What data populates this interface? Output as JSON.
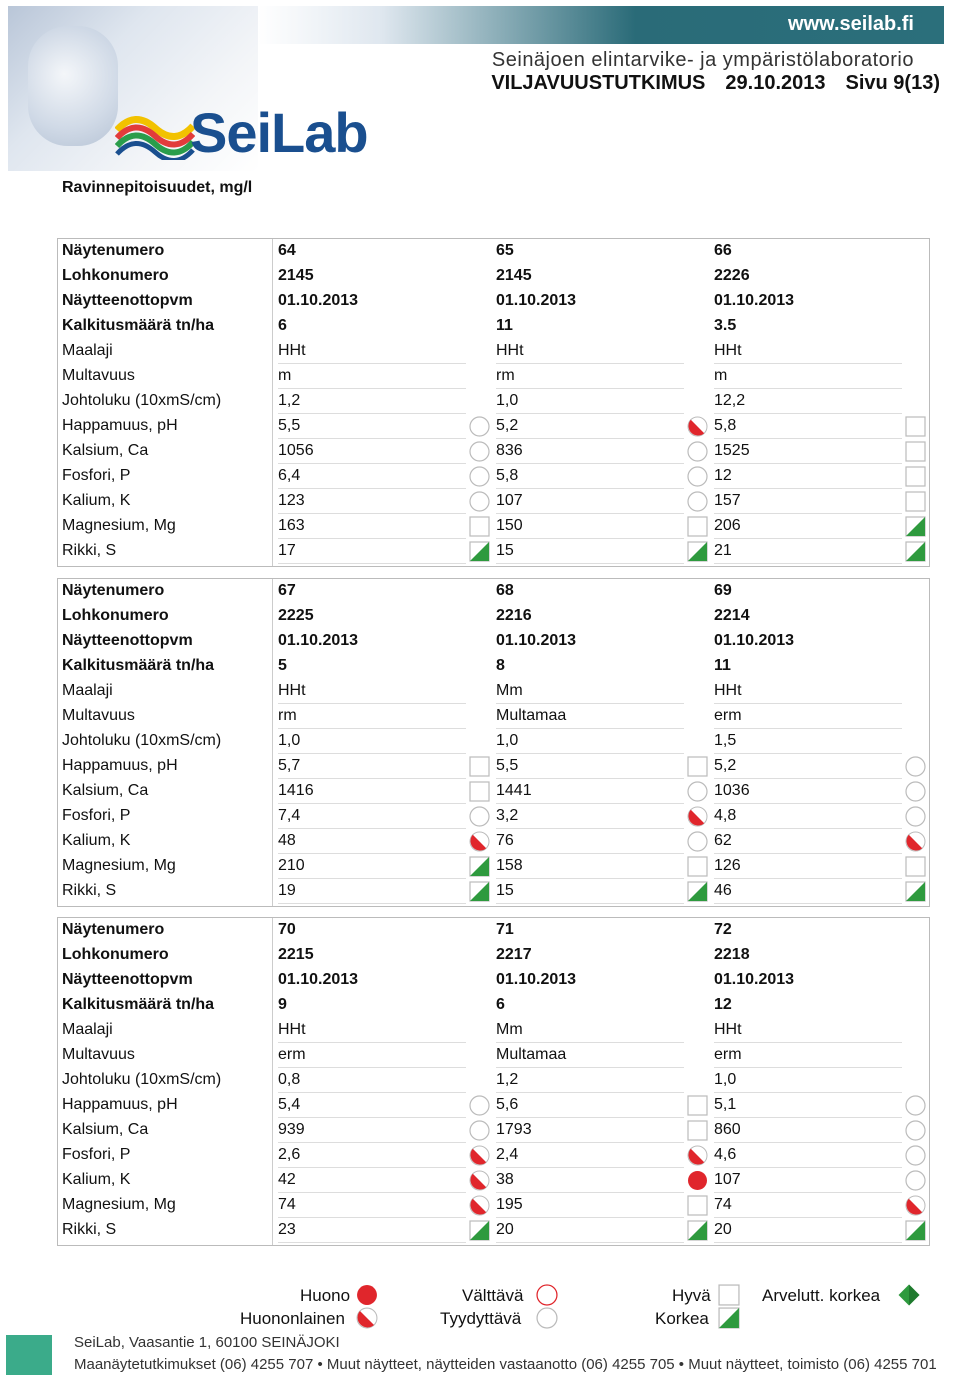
{
  "header": {
    "url": "www.seilab.fi",
    "subtitle": "Seinäjoen elintarvike- ja ympäristölaboratorio",
    "doc_title": "VILJAVUUSTUTKIMUS",
    "doc_date": "29.10.2013",
    "doc_page": "Sivu 9(13)",
    "logo_text": "SeiLab"
  },
  "section_title": "Ravinnepitoisuudet, mg/l",
  "row_labels": [
    "Näytenumero",
    "Lohkonumero",
    "Näytteenottopvm",
    "Kalkitusmäärä tn/ha",
    "Maalaji",
    "Multavuus",
    "Johtoluku (10xmS/cm)",
    "Happamuus, pH",
    "Kalsium, Ca",
    "Fosfori, P",
    "Kalium, K",
    "Magnesium, Mg",
    "Rikki, S"
  ],
  "blocks": [
    {
      "samples": [
        {
          "values": [
            "64",
            "2145",
            "01.10.2013",
            "6",
            "HHt",
            "m",
            "1,2",
            "5,5",
            "1056",
            "6,4",
            "123",
            "163",
            "17"
          ],
          "icons": [
            "",
            "",
            "",
            "",
            "",
            "",
            "",
            "tyydyttava",
            "tyydyttava",
            "tyydyttava",
            "tyydyttava",
            "hyva",
            "korkea"
          ]
        },
        {
          "values": [
            "65",
            "2145",
            "01.10.2013",
            "11",
            "HHt",
            "rm",
            "1,0",
            "5,2",
            "836",
            "5,8",
            "107",
            "150",
            "15"
          ],
          "icons": [
            "",
            "",
            "",
            "",
            "",
            "",
            "",
            "huononlainen",
            "tyydyttava",
            "tyydyttava",
            "tyydyttava",
            "hyva",
            "korkea"
          ]
        },
        {
          "values": [
            "66",
            "2226",
            "01.10.2013",
            "3.5",
            "HHt",
            "m",
            "12,2",
            "5,8",
            "1525",
            "12",
            "157",
            "206",
            "21"
          ],
          "icons": [
            "",
            "",
            "",
            "",
            "",
            "",
            "",
            "hyva",
            "hyva",
            "hyva",
            "hyva",
            "korkea",
            "korkea"
          ]
        }
      ]
    },
    {
      "samples": [
        {
          "values": [
            "67",
            "2225",
            "01.10.2013",
            "5",
            "HHt",
            "rm",
            "1,0",
            "5,7",
            "1416",
            "7,4",
            "48",
            "210",
            "19"
          ],
          "icons": [
            "",
            "",
            "",
            "",
            "",
            "",
            "",
            "hyva",
            "hyva",
            "tyydyttava",
            "huononlainen",
            "korkea",
            "korkea"
          ]
        },
        {
          "values": [
            "68",
            "2216",
            "01.10.2013",
            "8",
            "Mm",
            "Multamaa",
            "1,0",
            "5,5",
            "1441",
            "3,2",
            "76",
            "158",
            "15"
          ],
          "icons": [
            "",
            "",
            "",
            "",
            "",
            "",
            "",
            "hyva",
            "tyydyttava",
            "huononlainen",
            "tyydyttava",
            "hyva",
            "korkea"
          ]
        },
        {
          "values": [
            "69",
            "2214",
            "01.10.2013",
            "11",
            "HHt",
            "erm",
            "1,5",
            "5,2",
            "1036",
            "4,8",
            "62",
            "126",
            "46"
          ],
          "icons": [
            "",
            "",
            "",
            "",
            "",
            "",
            "",
            "tyydyttava",
            "tyydyttava",
            "tyydyttava",
            "huononlainen",
            "hyva",
            "korkea"
          ]
        }
      ]
    },
    {
      "samples": [
        {
          "values": [
            "70",
            "2215",
            "01.10.2013",
            "9",
            "HHt",
            "erm",
            "0,8",
            "5,4",
            "939",
            "2,6",
            "42",
            "74",
            "23"
          ],
          "icons": [
            "",
            "",
            "",
            "",
            "",
            "",
            "",
            "tyydyttava",
            "tyydyttava",
            "huononlainen",
            "huononlainen",
            "huononlainen",
            "korkea"
          ]
        },
        {
          "values": [
            "71",
            "2217",
            "01.10.2013",
            "6",
            "Mm",
            "Multamaa",
            "1,2",
            "5,6",
            "1793",
            "2,4",
            "38",
            "195",
            "20"
          ],
          "icons": [
            "",
            "",
            "",
            "",
            "",
            "",
            "",
            "hyva",
            "hyva",
            "huononlainen",
            "huono",
            "hyva",
            "korkea"
          ]
        },
        {
          "values": [
            "72",
            "2218",
            "01.10.2013",
            "12",
            "HHt",
            "erm",
            "1,0",
            "5,1",
            "860",
            "4,6",
            "107",
            "74",
            "20"
          ],
          "icons": [
            "",
            "",
            "",
            "",
            "",
            "",
            "",
            "tyydyttava",
            "tyydyttava",
            "tyydyttava",
            "tyydyttava",
            "huononlainen",
            "korkea"
          ]
        }
      ]
    }
  ],
  "legend": {
    "huono": "Huono",
    "huononlainen": "Huononlainen",
    "valttava": "Välttävä",
    "tyydyttava": "Tyydyttävä",
    "hyva": "Hyvä",
    "korkea": "Korkea",
    "arvelutt": "Arvelutt. korkea"
  },
  "footer": {
    "line1": "SeiLab, Vaasantie 1, 60100 SEINÄJOKI",
    "line2": "Maanäytetutkimukset (06) 4255 707 • Muut näytteet, näytteiden vastaanotto (06) 4255 705 • Muut näytteet, toimisto (06) 4255 701"
  },
  "colors": {
    "red": "#e0262c",
    "green": "#2e9a3e",
    "teal": "#2b6f7b"
  }
}
